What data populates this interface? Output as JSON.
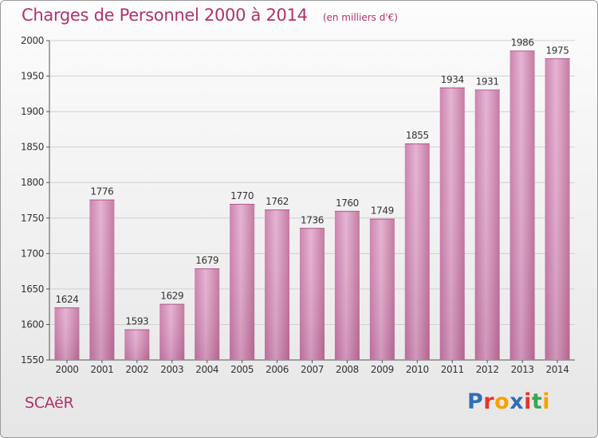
{
  "title": "Charges de Personnel 2000 à 2014",
  "subtitle": "(en milliers d'€)",
  "place": "SCAëR",
  "logo": {
    "letters": [
      {
        "ch": "P",
        "color": "#2e6fb7"
      },
      {
        "ch": "r",
        "color": "#e6332a"
      },
      {
        "ch": "o",
        "color": "#f4a300"
      },
      {
        "ch": "x",
        "color": "#2e6fb7"
      },
      {
        "ch": "i",
        "color": "#e6332a"
      },
      {
        "ch": "t",
        "color": "#3aa655"
      },
      {
        "ch": "i",
        "color": "#f4a300"
      }
    ]
  },
  "chart_data": {
    "type": "bar",
    "categories": [
      "2000",
      "2001",
      "2002",
      "2003",
      "2004",
      "2005",
      "2006",
      "2007",
      "2008",
      "2009",
      "2010",
      "2011",
      "2012",
      "2013",
      "2014"
    ],
    "values": [
      1624,
      1776,
      1593,
      1629,
      1679,
      1770,
      1762,
      1736,
      1760,
      1749,
      1855,
      1934,
      1931,
      1986,
      1975
    ],
    "ylim": [
      1550,
      2000
    ],
    "yticks": [
      1550,
      1600,
      1650,
      1700,
      1750,
      1800,
      1850,
      1900,
      1950,
      2000
    ],
    "grid": true,
    "bar_color": "#d79ac0",
    "text_color": "#b0326e"
  }
}
